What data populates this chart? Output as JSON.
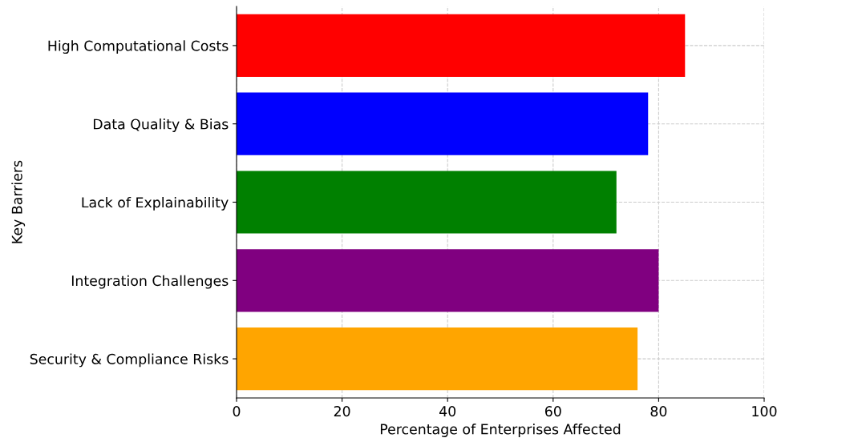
{
  "chart_data": {
    "type": "bar",
    "orientation": "horizontal",
    "xlabel": "Percentage of Enterprises Affected",
    "ylabel": "Key Barriers",
    "categories": [
      "High Computational Costs",
      "Data Quality & Bias",
      "Lack of Explainability",
      "Integration Challenges",
      "Security & Compliance Risks"
    ],
    "values": [
      85,
      78,
      72,
      80,
      76
    ],
    "colors": [
      "#ff0000",
      "#0000ff",
      "#008000",
      "#800080",
      "#ffa500"
    ],
    "xlim": [
      0,
      100
    ],
    "xticks": [
      0,
      20,
      40,
      60,
      80,
      100
    ],
    "grid": true
  }
}
